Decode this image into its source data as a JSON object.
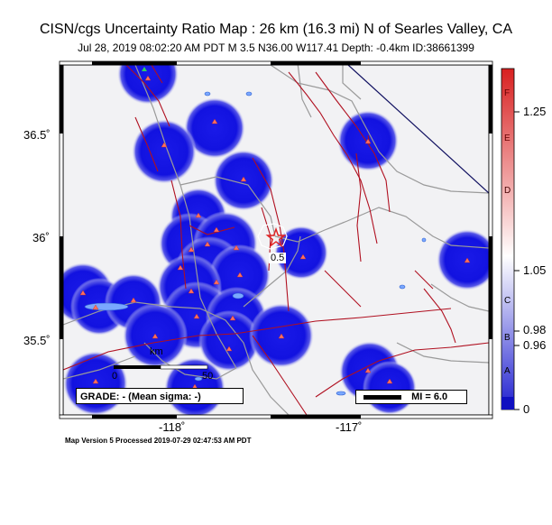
{
  "header": {
    "title": "CISN/cgs Uncertainty Ratio Map : 26 km (16.3 mi) N of Searles Valley, CA",
    "subtitle": "Jul 28, 2019 08:02:20 AM PDT   M 3.5   N36.00 W117.41   Depth: -0.4km   ID:38661399"
  },
  "map": {
    "lat_ticks": [
      "36.5˚",
      "36˚",
      "35.5˚"
    ],
    "lon_ticks": [
      "-118˚",
      "-117˚"
    ],
    "contour_label": "0.5",
    "scale_bar": {
      "unit": "km",
      "start": "0",
      "end": "50"
    },
    "grade_label": "GRADE: - (Mean sigma: -)",
    "mi_legend": "MI = 6.0",
    "colors": {
      "uncertainty_blue": "#1010e0",
      "fault_red": "#b01020",
      "road_gray": "#9a9a9a",
      "star": "#e02020"
    }
  },
  "colorbar": {
    "values": [
      "1.25",
      "1.05",
      "0.98",
      "0.96",
      "0"
    ],
    "letters": [
      "F",
      "E",
      "D",
      "C",
      "B",
      "A"
    ]
  },
  "footer": {
    "version": "Map Version 5 Processed 2019-07-29 02:47:53 AM PDT"
  }
}
